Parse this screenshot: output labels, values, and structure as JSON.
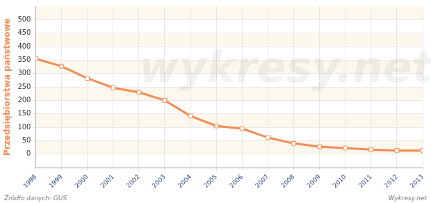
{
  "chart_data": {
    "type": "line",
    "y_label": "Przedsiębiorstwa państwowe",
    "categories": [
      "1998",
      "1999",
      "2000",
      "2001",
      "2002",
      "2003",
      "2004",
      "2005",
      "2006",
      "2007",
      "2008",
      "2009",
      "2010",
      "2011",
      "2012",
      "2013"
    ],
    "values": [
      355,
      327,
      282,
      247,
      230,
      200,
      142,
      105,
      95,
      62,
      40,
      28,
      23,
      17,
      14,
      14
    ],
    "color": "#f0884f",
    "marker": "square",
    "ylim": [
      -50,
      550
    ],
    "yticks": [
      0,
      50,
      100,
      150,
      200,
      250,
      300,
      350,
      400,
      450,
      500
    ],
    "grid": true,
    "source": "Źródło danych: GUS",
    "credit": "Wykresy.net",
    "watermark": "wykresy.net"
  }
}
